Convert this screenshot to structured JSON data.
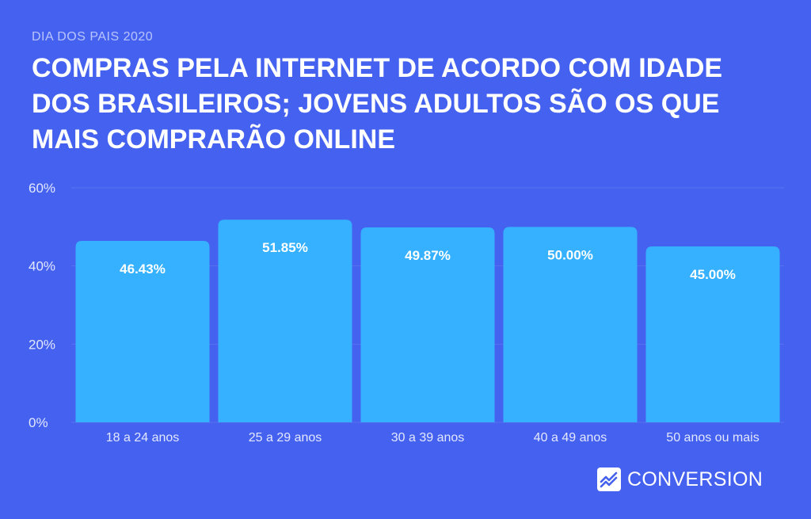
{
  "header": {
    "eyebrow": "DIA DOS PAIS 2020",
    "title": "COMPRAS PELA INTERNET DE ACORDO COM IDADE DOS BRASILEIROS; JOVENS ADULTOS SÃO OS QUE MAIS COMPRARÃO ONLINE"
  },
  "chart_data": {
    "type": "bar",
    "title": "COMPRAS PELA INTERNET DE ACORDO COM IDADE DOS BRASILEIROS; JOVENS ADULTOS SÃO OS QUE MAIS COMPRARÃO ONLINE",
    "categories": [
      "18 a 24 anos",
      "25 a 29 anos",
      "30 a 39 anos",
      "40 a 49 anos",
      "50 anos ou mais"
    ],
    "values": [
      46.43,
      51.85,
      49.87,
      50.0,
      45.0
    ],
    "data_labels": [
      "46.43%",
      "51.85%",
      "49.87%",
      "50.00%",
      "45.00%"
    ],
    "ylim": [
      0,
      60
    ],
    "yticks": [
      "0%",
      "20%",
      "40%",
      "60%"
    ],
    "ytick_values": [
      0,
      20,
      40,
      60
    ],
    "xlabel": "",
    "ylabel": "",
    "grid": true,
    "colors": {
      "bar": "#36b1ff",
      "grid": "#5a73f2",
      "tick": "#e3e8ff",
      "label": "#ffffff"
    }
  },
  "brand": {
    "name": "CONVERSION",
    "icon": "chart-line-icon"
  }
}
